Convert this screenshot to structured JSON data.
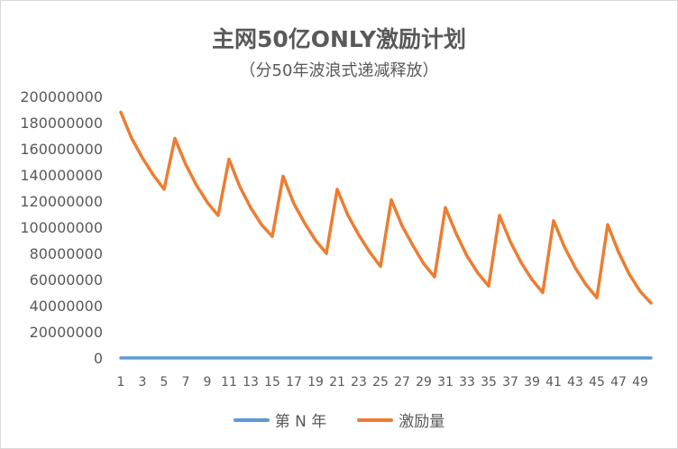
{
  "chart_data": {
    "type": "line",
    "title": "主网50亿ONLY激励计划",
    "subtitle": "（分50年波浪式递减释放）",
    "ylim": [
      0,
      200000000
    ],
    "yticks": [
      "0",
      "20000000",
      "40000000",
      "60000000",
      "80000000",
      "100000000",
      "120000000",
      "140000000",
      "160000000",
      "180000000",
      "200000000"
    ],
    "x": [
      1,
      2,
      3,
      4,
      5,
      6,
      7,
      8,
      9,
      10,
      11,
      12,
      13,
      14,
      15,
      16,
      17,
      18,
      19,
      20,
      21,
      22,
      23,
      24,
      25,
      26,
      27,
      28,
      29,
      30,
      31,
      32,
      33,
      34,
      35,
      36,
      37,
      38,
      39,
      40,
      41,
      42,
      43,
      44,
      45,
      46,
      47,
      48,
      49,
      50
    ],
    "xtick_labels": [
      "1",
      "3",
      "5",
      "7",
      "9",
      "11",
      "13",
      "15",
      "17",
      "19",
      "21",
      "23",
      "25",
      "27",
      "29",
      "31",
      "33",
      "35",
      "37",
      "39",
      "41",
      "43",
      "45",
      "47",
      "49"
    ],
    "series": [
      {
        "name": "第 N 年",
        "color": "#5b9bd5",
        "values": [
          1,
          2,
          3,
          4,
          5,
          6,
          7,
          8,
          9,
          10,
          11,
          12,
          13,
          14,
          15,
          16,
          17,
          18,
          19,
          20,
          21,
          22,
          23,
          24,
          25,
          26,
          27,
          28,
          29,
          30,
          31,
          32,
          33,
          34,
          35,
          36,
          37,
          38,
          39,
          40,
          41,
          42,
          43,
          44,
          45,
          46,
          47,
          48,
          49,
          50
        ]
      },
      {
        "name": "激励量",
        "color": "#ed7d31",
        "values": [
          188000000,
          168000000,
          153000000,
          140000000,
          129000000,
          168000000,
          148000000,
          132000000,
          119000000,
          109000000,
          152000000,
          131000000,
          115000000,
          102000000,
          93000000,
          139000000,
          118000000,
          103000000,
          90000000,
          80000000,
          129000000,
          109000000,
          94000000,
          81000000,
          70000000,
          121000000,
          101000000,
          86000000,
          72000000,
          62000000,
          115000000,
          95000000,
          78000000,
          65000000,
          55000000,
          109000000,
          89000000,
          73000000,
          60000000,
          50000000,
          105000000,
          85000000,
          69000000,
          56000000,
          46000000,
          102000000,
          81000000,
          64000000,
          51000000,
          42000000
        ]
      }
    ],
    "grid": false,
    "legend_position": "bottom"
  }
}
